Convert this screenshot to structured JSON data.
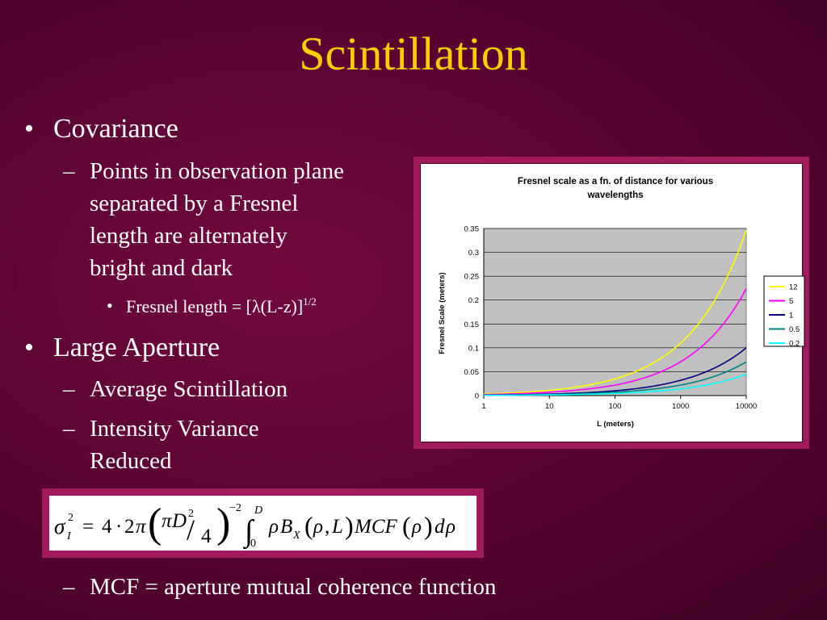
{
  "slide": {
    "title": "Scintillation",
    "bullets": {
      "covariance": "Covariance",
      "points_line1": "Points in observation plane",
      "points_line2": "separated by a Fresnel",
      "points_line3": "length are alternately",
      "points_line4": "bright and dark",
      "fresnel_length": "Fresnel length = [λ(L-z)]",
      "fresnel_exp": "1/2",
      "large_aperture": "Large Aperture",
      "avg_scint": "Average Scintillation",
      "intensity_line1": "Intensity Variance",
      "intensity_line2": "Reduced",
      "mcf": "MCF = aperture mutual coherence function"
    },
    "markers": {
      "bullet": "•",
      "dash": "–"
    }
  },
  "equation": {
    "sigma": "σ",
    "sub_I": "I",
    "sup_2": "2",
    "equals": "=",
    "four": "4",
    "cdot": "·",
    "two": "2",
    "pi": "π",
    "lparen": "(",
    "rparen": ")",
    "D": "D",
    "slash": "/",
    "denominator": "4",
    "outer_exp": "−2",
    "integral": "∫",
    "upper_limit": "D",
    "lower_limit": "0",
    "rho": "ρ",
    "B": "B",
    "sub_X": "X",
    "comma": ",",
    "L": "L",
    "MCF": "MCF",
    "d": "d"
  },
  "chart_data": {
    "type": "line",
    "title_line1": "Fresnel scale as a fn. of distance for various",
    "title_line2": "wavelengths",
    "xlabel": "L (meters)",
    "ylabel": "Fresnel Scale (meters)",
    "x_scale": "log",
    "xlim": [
      1,
      10000
    ],
    "ylim": [
      0,
      0.35
    ],
    "x_ticks": [
      "1",
      "10",
      "100",
      "1000",
      "10000"
    ],
    "y_ticks": [
      "0",
      "0.05",
      "0.1",
      "0.15",
      "0.2",
      "0.25",
      "0.3",
      "0.35"
    ],
    "grid": true,
    "legend_position": "right",
    "x": [
      1,
      10,
      100,
      1000,
      10000
    ],
    "series": [
      {
        "name": "12",
        "color": "#ffff00",
        "values": [
          0.0035,
          0.011,
          0.035,
          0.11,
          0.346
        ]
      },
      {
        "name": "5",
        "color": "#ff00ff",
        "values": [
          0.0022,
          0.0071,
          0.022,
          0.071,
          0.224
        ]
      },
      {
        "name": "1",
        "color": "#000080",
        "values": [
          0.001,
          0.0032,
          0.01,
          0.032,
          0.1
        ]
      },
      {
        "name": "0.5",
        "color": "#008080",
        "values": [
          0.0007,
          0.0022,
          0.007,
          0.022,
          0.0707
        ]
      },
      {
        "name": "0.2",
        "color": "#00ffff",
        "values": [
          0.00045,
          0.0014,
          0.0045,
          0.014,
          0.0447
        ]
      }
    ],
    "colors": {
      "plot_background": "#c0c0c0",
      "gridline": "#000000"
    }
  }
}
